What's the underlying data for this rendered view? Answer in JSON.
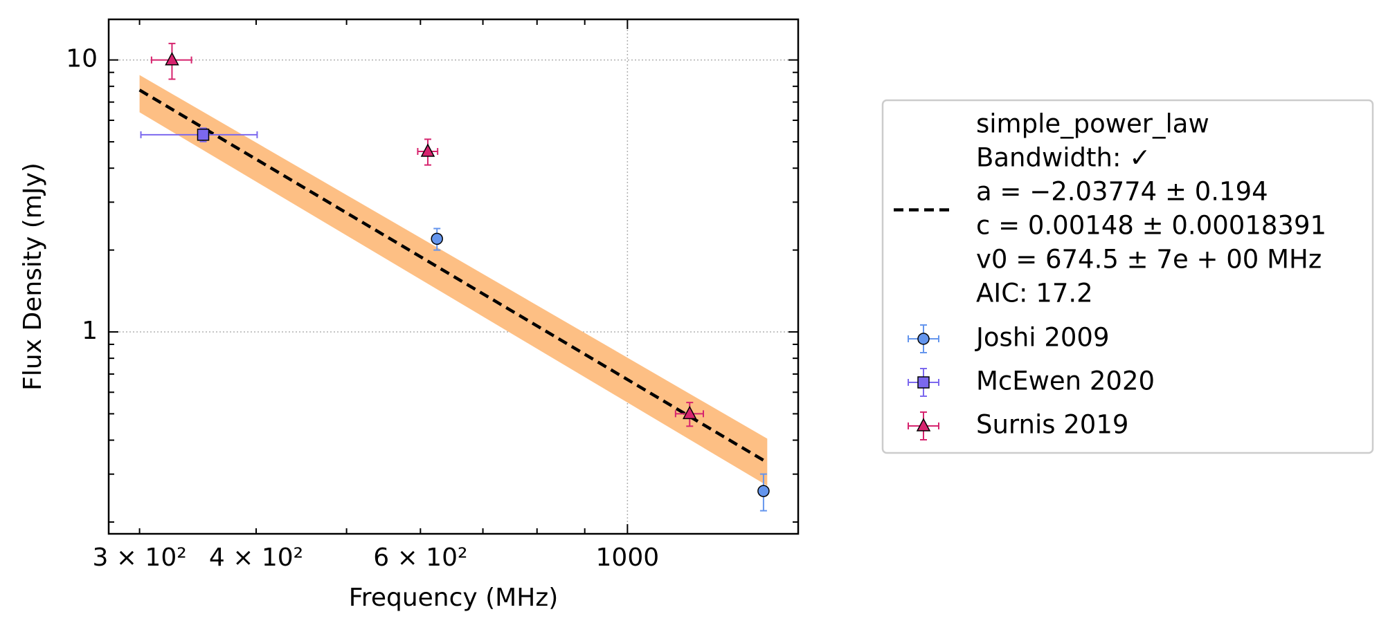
{
  "chart_data": {
    "type": "scatter",
    "xlabel": "Frequency (MHz)",
    "ylabel": "Flux Density (mJy)",
    "xscale": "log",
    "yscale": "log",
    "xlim": [
      278,
      1524
    ],
    "ylim": [
      0.181,
      14.1
    ],
    "xticks": [
      {
        "value": 300,
        "label": "3 × 10²"
      },
      {
        "value": 400,
        "label": "4 × 10²"
      },
      {
        "value": 600,
        "label": "6 × 10²"
      },
      1000
    ],
    "xminor": [
      500,
      700,
      800,
      900
    ],
    "xgrid": [
      1000
    ],
    "yticks": [
      1,
      10
    ],
    "yminor": [
      0.2,
      0.3,
      0.4,
      0.5,
      0.6,
      0.7,
      0.8,
      0.9,
      2,
      3,
      4,
      5,
      6,
      7,
      8,
      9
    ],
    "grid": true,
    "legend": "right",
    "fit": {
      "label_lines": [
        "simple_power_law",
        "Bandwidth: ✓",
        "a = −2.03774 ± 0.194",
        "c = 0.00148 ± 0.00018391",
        "v0 = 674.5 ± 7e + 00 MHz",
        "AIC: 17.2"
      ],
      "color": "#000000",
      "band_color": "#fdbf84",
      "x": [
        300,
        1412
      ],
      "values": [
        7.75,
        0.331
      ],
      "upper": [
        8.8,
        0.405
      ],
      "lower": [
        6.42,
        0.272
      ]
    },
    "series": [
      {
        "name": "Joshi 2009",
        "color": "#6495ed",
        "marker": "circle",
        "x": [
          625,
          1399
        ],
        "values": [
          2.2,
          0.26
        ],
        "xerr": [
          0,
          0
        ],
        "yerr": [
          0.2,
          0.04
        ]
      },
      {
        "name": "McEwen 2020",
        "color": "#7b68ee",
        "marker": "square",
        "x": [
          351
        ],
        "values": [
          5.31
        ],
        "xerr": [
          50
        ],
        "yerr": [
          0.3
        ]
      },
      {
        "name": "Surnis 2019",
        "color": "#d6246e",
        "marker": "triangle",
        "x": [
          325,
          611,
          1166
        ],
        "values": [
          10,
          4.61,
          0.5
        ],
        "xerr": [
          16,
          15,
          40
        ],
        "yerr": [
          1.5,
          0.5,
          0.05
        ]
      }
    ]
  }
}
